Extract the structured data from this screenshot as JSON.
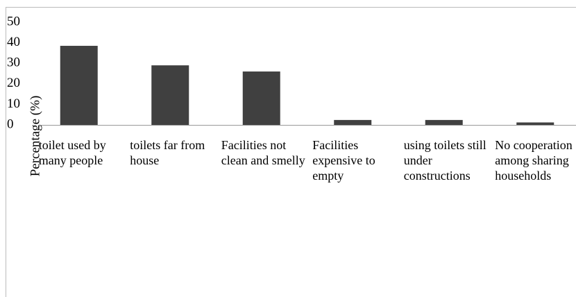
{
  "chart_data": {
    "type": "bar",
    "y_label": "Percentage (%)",
    "categories": [
      "toilet used by many people",
      "toilets far from house",
      "Facilities not clean and smelly",
      "Facilities expensive to empty",
      "using toilets still under constructions",
      "No cooperation among sharing households"
    ],
    "values": [
      38.5,
      29,
      26,
      2.4,
      2.4,
      1.2
    ],
    "color": "#404040",
    "ylim": [
      0,
      50
    ],
    "yticks": [
      0,
      10,
      20,
      30,
      40,
      50
    ],
    "grid": false
  }
}
